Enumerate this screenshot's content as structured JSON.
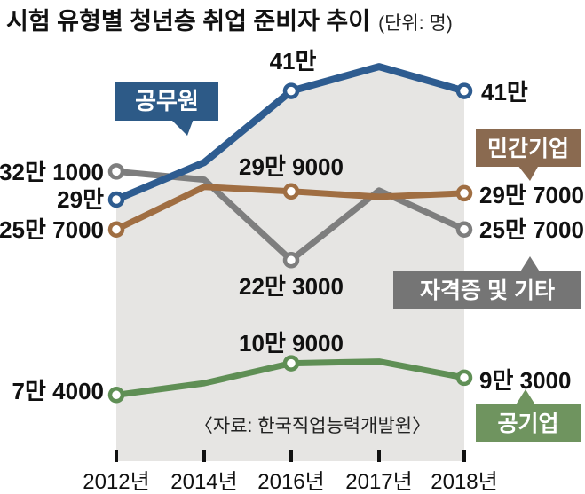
{
  "chart_data": {
    "type": "line",
    "title": "시험 유형별 청년층 취업 준비자 추이",
    "unit_note": "(단위: 명)",
    "source": "〈자료: 한국직업능력개발원〉",
    "categories": [
      "2012년",
      "2014년",
      "2016년",
      "2017년",
      "2018년"
    ],
    "area_color": "#e6e5e3",
    "legend_style": "callout-boxes",
    "grid": false,
    "series": [
      {
        "key": "gongmuwon",
        "name": "공무원",
        "color": "#2e5c90",
        "box_color": "#2d5a87",
        "values_man": [
          29.0,
          33.1,
          41.0,
          43.7,
          41.0
        ],
        "point_labels": [
          "29만",
          null,
          "41만",
          null,
          "41만"
        ]
      },
      {
        "key": "mingan",
        "name": "민간기업",
        "color": "#a06e42",
        "box_color": "#8a6a50",
        "values_man": [
          25.7,
          30.4,
          29.9,
          29.3,
          29.7
        ],
        "point_labels": [
          "25만 7000",
          null,
          "29만 9000",
          null,
          "29만 7000"
        ]
      },
      {
        "key": "jagyeokjeung",
        "name": "자격증 및 기타",
        "color": "#7e7e7e",
        "box_color": "#757575",
        "values_man": [
          32.1,
          31.2,
          22.3,
          30.0,
          25.7
        ],
        "point_labels": [
          "32만 1000",
          null,
          "22만 3000",
          null,
          "25만 7000"
        ]
      },
      {
        "key": "gongieop",
        "name": "공기업",
        "color": "#5f8f55",
        "box_color": "#6f945f",
        "values_man": [
          7.4,
          8.7,
          10.9,
          11.1,
          9.3
        ],
        "point_labels": [
          "7만 4000",
          null,
          "10만 9000",
          null,
          "9만 3000"
        ]
      }
    ]
  }
}
